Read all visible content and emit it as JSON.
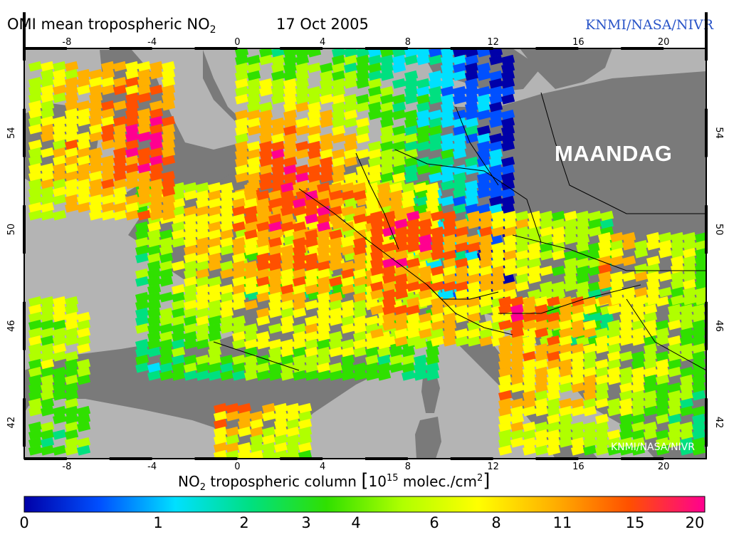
{
  "header": {
    "title_main": "OMI mean tropospheric NO",
    "title_sub": "2",
    "date": "17 Oct 2005",
    "credit": "KNMI/NASA/NIVR"
  },
  "map": {
    "lon_range": [
      -10,
      22
    ],
    "lat_range": [
      40.5,
      57.5
    ],
    "lon_ticks": [
      "-8",
      "-4",
      "0",
      "4",
      "8",
      "12",
      "16",
      "20"
    ],
    "lat_ticks": [
      "54",
      "50",
      "46",
      "42"
    ],
    "overlay_label": "MAANDAG",
    "watermark": "KNMI/NASA/NIVR",
    "colors": {
      "land": "#7a7a7a",
      "sea": "#b4b4b4",
      "border": "#000000"
    }
  },
  "colorbar": {
    "title_pre": "NO",
    "title_sub": "2",
    "title_mid": " tropospheric column ",
    "title_bracket_open": "[",
    "title_base": "10",
    "title_exp": "15",
    "title_units": " molec./cm",
    "title_units_exp": "2",
    "title_bracket_close": "]",
    "tick_labels": [
      "0",
      "1",
      "2",
      "3",
      "4",
      "6",
      "8",
      "11",
      "15",
      "20"
    ],
    "colors": [
      "#0000a8",
      "#0050ff",
      "#00e0ff",
      "#00e080",
      "#30e000",
      "#b0ff00",
      "#ffff00",
      "#ffb000",
      "#ff5000",
      "#ff0090"
    ]
  }
}
